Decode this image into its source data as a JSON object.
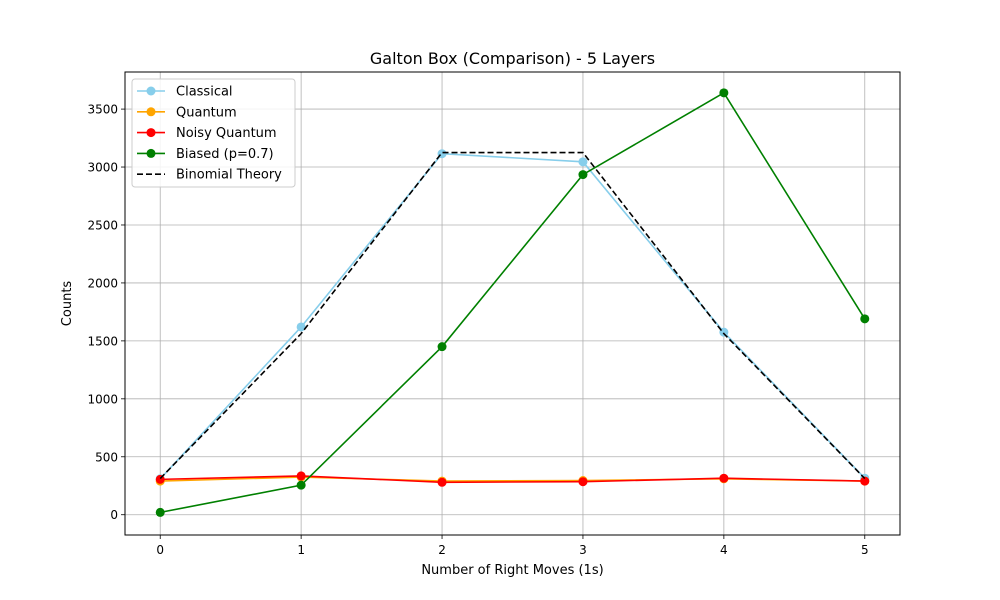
{
  "chart_data": {
    "type": "line",
    "title": "Galton Box (Comparison) - 5 Layers",
    "xlabel": "Number of Right Moves (1s)",
    "ylabel": "Counts",
    "x": [
      0,
      1,
      2,
      3,
      4,
      5
    ],
    "xlim": [
      -0.25,
      5.25
    ],
    "ylim": [
      -175,
      3820
    ],
    "xticks": [
      0,
      1,
      2,
      3,
      4,
      5
    ],
    "yticks": [
      0,
      500,
      1000,
      1500,
      2000,
      2500,
      3000,
      3500
    ],
    "grid": true,
    "legend_position": "top-left",
    "series": [
      {
        "name": "Classical",
        "color": "#87CEEB",
        "style": "solid",
        "marker": "circle",
        "values": [
          310,
          1620,
          3115,
          3045,
          1575,
          315
        ]
      },
      {
        "name": "Quantum",
        "color": "#FFA500",
        "style": "solid",
        "marker": "circle",
        "values": [
          290,
          325,
          290,
          295,
          310,
          290
        ]
      },
      {
        "name": "Noisy Quantum",
        "color": "#FF0000",
        "style": "solid",
        "marker": "circle",
        "values": [
          305,
          335,
          280,
          285,
          315,
          290
        ]
      },
      {
        "name": "Biased (p=0.7)",
        "color": "#008000",
        "style": "solid",
        "marker": "circle",
        "values": [
          20,
          255,
          1450,
          2935,
          3640,
          1690
        ]
      },
      {
        "name": "Binomial Theory",
        "color": "#000000",
        "style": "dashed",
        "marker": "none",
        "values": [
          312.5,
          1562.5,
          3125,
          3125,
          1562.5,
          312.5
        ]
      }
    ]
  }
}
